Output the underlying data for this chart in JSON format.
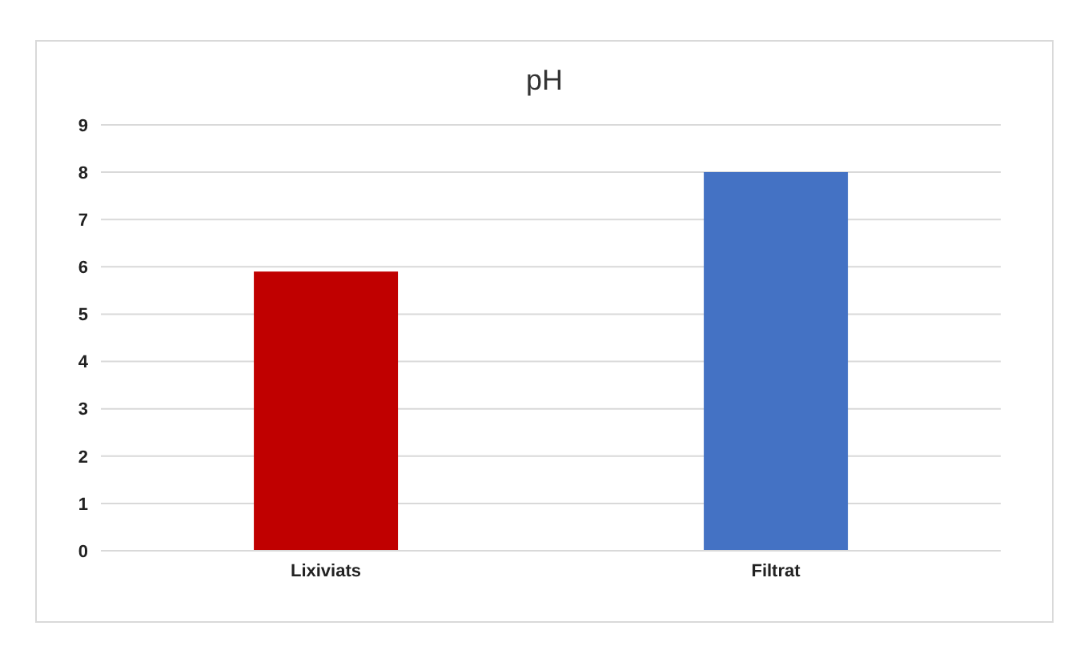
{
  "chart_data": {
    "type": "bar",
    "title": "pH",
    "categories": [
      "Lixiviats",
      "Filtrat"
    ],
    "values": [
      5.9,
      8
    ],
    "colors": [
      "#c00000",
      "#4472c4"
    ],
    "ylim": [
      0,
      9
    ],
    "yticks": [
      0,
      1,
      2,
      3,
      4,
      5,
      6,
      7,
      8,
      9
    ],
    "grid": "y"
  }
}
